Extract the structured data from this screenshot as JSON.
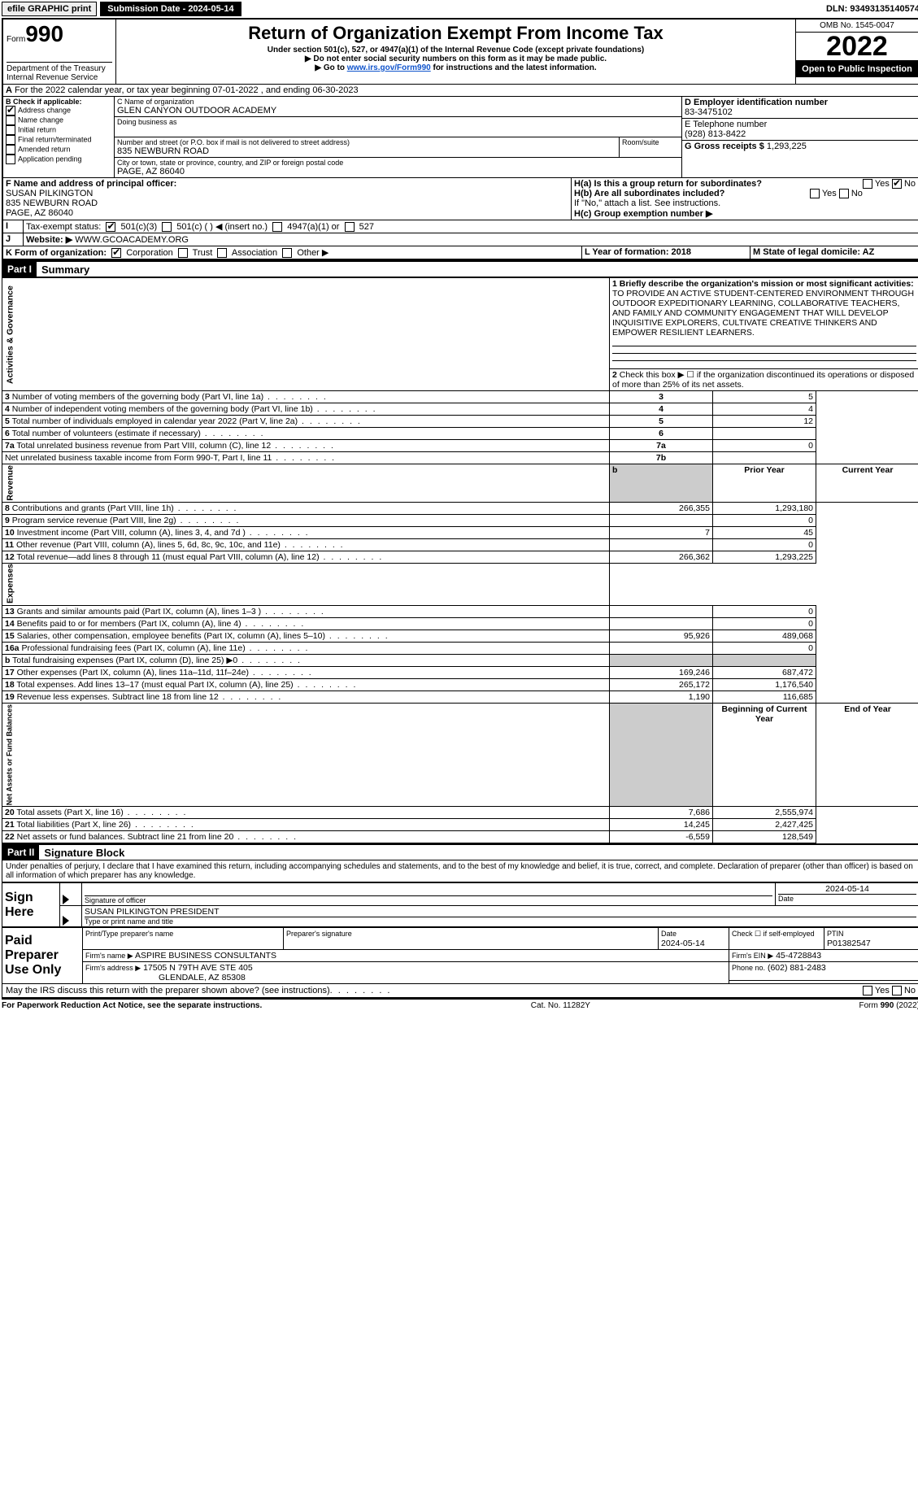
{
  "topbar": {
    "efile": "efile GRAPHIC print",
    "submission": "Submission Date - 2024-05-14",
    "dln": "DLN: 93493135140574"
  },
  "header": {
    "form_word": "Form",
    "form_no": "990",
    "dept1": "Department of the Treasury",
    "dept2": "Internal Revenue Service",
    "title": "Return of Organization Exempt From Income Tax",
    "sub1": "Under section 501(c), 527, or 4947(a)(1) of the Internal Revenue Code (except private foundations)",
    "sub2": "▶ Do not enter social security numbers on this form as it may be made public.",
    "sub3_pre": "▶ Go to ",
    "sub3_link": "www.irs.gov/Form990",
    "sub3_post": " for instructions and the latest information.",
    "omb": "OMB No. 1545-0047",
    "year": "2022",
    "open": "Open to Public Inspection"
  },
  "A": {
    "text": "For the 2022 calendar year, or tax year beginning 07-01-2022   , and ending 06-30-2023"
  },
  "B": {
    "label": "B Check if applicable:",
    "items": [
      "Address change",
      "Name change",
      "Initial return",
      "Final return/terminated",
      "Amended return",
      "Application pending"
    ],
    "checked_idx": 0
  },
  "C": {
    "label_name": "C Name of organization",
    "name": "GLEN CANYON OUTDOOR ACADEMY",
    "dba_label": "Doing business as",
    "addr_label": "Number and street (or P.O. box if mail is not delivered to street address)",
    "room": "Room/suite",
    "addr": "835 NEWBURN ROAD",
    "city_label": "City or town, state or province, country, and ZIP or foreign postal code",
    "city": "PAGE, AZ  86040"
  },
  "D": {
    "label": "D Employer identification number",
    "val": "83-3475102"
  },
  "E": {
    "label": "E Telephone number",
    "val": "(928) 813-8422"
  },
  "G": {
    "label": "G Gross receipts $",
    "val": "1,293,225"
  },
  "F": {
    "label": "F  Name and address of principal officer:",
    "l1": "SUSAN PILKINGTON",
    "l2": "835 NEWBURN ROAD",
    "l3": "PAGE, AZ  86040"
  },
  "H": {
    "a_label": "H(a)  Is this a group return for subordinates?",
    "a_yes": "Yes",
    "a_no": "No",
    "b_label": "H(b)  Are all subordinates included?",
    "b_note": "If \"No,\" attach a list. See instructions.",
    "c_label": "H(c)  Group exemption number ▶"
  },
  "I": {
    "label": "Tax-exempt status:",
    "opts": [
      "501(c)(3)",
      "501(c) (  ) ◀ (insert no.)",
      "4947(a)(1) or",
      "527"
    ]
  },
  "J": {
    "label": "Website: ▶",
    "val": "WWW.GCOACADEMY.ORG"
  },
  "K": {
    "label": "K Form of organization:",
    "opts": [
      "Corporation",
      "Trust",
      "Association",
      "Other ▶"
    ]
  },
  "L": {
    "label": "L Year of formation: 2018"
  },
  "M": {
    "label": "M State of legal domicile: AZ"
  },
  "part1": {
    "header": "Part I",
    "title": "Summary",
    "q1_label": "1 Briefly describe the organization's mission or most significant activities:",
    "q1_text": "TO PROVIDE AN ACTIVE STUDENT-CENTERED ENVIRONMENT THROUGH OUTDOOR EXPEDITIONARY LEARNING, COLLABORATIVE TEACHERS, AND FAMILY AND COMMUNITY ENGAGEMENT THAT WILL DEVELOP INQUISITIVE EXPLORERS, CULTIVATE CREATIVE THINKERS AND EMPOWER RESILIENT LEARNERS.",
    "q2": "Check this box ▶ ☐  if the organization discontinued its operations or disposed of more than 25% of its net assets.",
    "rows_gov": [
      {
        "n": "3",
        "t": "Number of voting members of the governing body (Part VI, line 1a)",
        "box": "3",
        "v": "5"
      },
      {
        "n": "4",
        "t": "Number of independent voting members of the governing body (Part VI, line 1b)",
        "box": "4",
        "v": "4"
      },
      {
        "n": "5",
        "t": "Total number of individuals employed in calendar year 2022 (Part V, line 2a)",
        "box": "5",
        "v": "12"
      },
      {
        "n": "6",
        "t": "Total number of volunteers (estimate if necessary)",
        "box": "6",
        "v": ""
      },
      {
        "n": "7a",
        "t": "Total unrelated business revenue from Part VIII, column (C), line 12",
        "box": "7a",
        "v": "0"
      },
      {
        "n": "",
        "t": "Net unrelated business taxable income from Form 990-T, Part I, line 11",
        "box": "7b",
        "v": ""
      }
    ],
    "col_prior": "Prior Year",
    "col_curr": "Current Year",
    "rows_rev": [
      {
        "n": "8",
        "t": "Contributions and grants (Part VIII, line 1h)",
        "p": "266,355",
        "c": "1,293,180"
      },
      {
        "n": "9",
        "t": "Program service revenue (Part VIII, line 2g)",
        "p": "",
        "c": "0"
      },
      {
        "n": "10",
        "t": "Investment income (Part VIII, column (A), lines 3, 4, and 7d )",
        "p": "7",
        "c": "45"
      },
      {
        "n": "11",
        "t": "Other revenue (Part VIII, column (A), lines 5, 6d, 8c, 9c, 10c, and 11e)",
        "p": "",
        "c": "0"
      },
      {
        "n": "12",
        "t": "Total revenue—add lines 8 through 11 (must equal Part VIII, column (A), line 12)",
        "p": "266,362",
        "c": "1,293,225"
      }
    ],
    "rows_exp": [
      {
        "n": "13",
        "t": "Grants and similar amounts paid (Part IX, column (A), lines 1–3 )",
        "p": "",
        "c": "0"
      },
      {
        "n": "14",
        "t": "Benefits paid to or for members (Part IX, column (A), line 4)",
        "p": "",
        "c": "0"
      },
      {
        "n": "15",
        "t": "Salaries, other compensation, employee benefits (Part IX, column (A), lines 5–10)",
        "p": "95,926",
        "c": "489,068"
      },
      {
        "n": "16a",
        "t": "Professional fundraising fees (Part IX, column (A), line 11e)",
        "p": "",
        "c": "0"
      },
      {
        "n": "b",
        "t": "Total fundraising expenses (Part IX, column (D), line 25) ▶0",
        "p": "SHADE",
        "c": "SHADE"
      },
      {
        "n": "17",
        "t": "Other expenses (Part IX, column (A), lines 11a–11d, 11f–24e)",
        "p": "169,246",
        "c": "687,472"
      },
      {
        "n": "18",
        "t": "Total expenses. Add lines 13–17 (must equal Part IX, column (A), line 25)",
        "p": "265,172",
        "c": "1,176,540"
      },
      {
        "n": "19",
        "t": "Revenue less expenses. Subtract line 18 from line 12",
        "p": "1,190",
        "c": "116,685"
      }
    ],
    "col_beg": "Beginning of Current Year",
    "col_end": "End of Year",
    "rows_net": [
      {
        "n": "20",
        "t": "Total assets (Part X, line 16)",
        "p": "7,686",
        "c": "2,555,974"
      },
      {
        "n": "21",
        "t": "Total liabilities (Part X, line 26)",
        "p": "14,245",
        "c": "2,427,425"
      },
      {
        "n": "22",
        "t": "Net assets or fund balances. Subtract line 21 from line 20",
        "p": "-6,559",
        "c": "128,549"
      }
    ],
    "vlabels": {
      "gov": "Activities & Governance",
      "rev": "Revenue",
      "exp": "Expenses",
      "net": "Net Assets or Fund Balances"
    }
  },
  "part2": {
    "header": "Part II",
    "title": "Signature Block",
    "decl": "Under penalties of perjury, I declare that I have examined this return, including accompanying schedules and statements, and to the best of my knowledge and belief, it is true, correct, and complete. Declaration of preparer (other than officer) is based on all information of which preparer has any knowledge.",
    "sign_here": "Sign Here",
    "sig_officer": "Signature of officer",
    "date": "Date",
    "sig_date": "2024-05-14",
    "name_title": "SUSAN PILKINGTON  PRESIDENT",
    "name_title_label": "Type or print name and title",
    "paid": "Paid Preparer Use Only",
    "pt_name_label": "Print/Type preparer's name",
    "pt_sig_label": "Preparer's signature",
    "pt_date_label": "Date",
    "pt_date": "2024-05-14",
    "pt_check": "Check ☐ if self-employed",
    "ptin_label": "PTIN",
    "ptin": "P01382547",
    "firm_name_label": "Firm's name    ▶",
    "firm_name": "ASPIRE BUSINESS CONSULTANTS",
    "firm_ein_label": "Firm's EIN ▶",
    "firm_ein": "45-4728843",
    "firm_addr_label": "Firm's address ▶",
    "firm_addr1": "17505 N 79TH AVE STE 405",
    "firm_addr2": "GLENDALE, AZ  85308",
    "phone_label": "Phone no.",
    "phone": "(602) 881-2483",
    "discuss": "May the IRS discuss this return with the preparer shown above? (see instructions)"
  },
  "footer": {
    "left": "For Paperwork Reduction Act Notice, see the separate instructions.",
    "mid": "Cat. No. 11282Y",
    "right": "Form 990 (2022)"
  }
}
